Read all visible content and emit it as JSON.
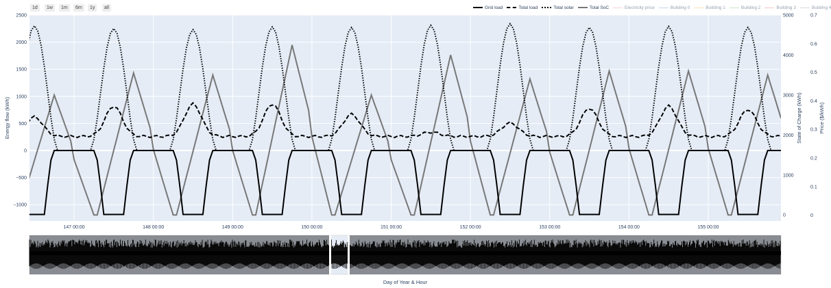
{
  "range_buttons": [
    "1d",
    "1w",
    "1m",
    "6m",
    "1y",
    "all"
  ],
  "legend": [
    {
      "label": "Grid load",
      "color": "#000000",
      "dash": "solid",
      "width": 2
    },
    {
      "label": "Total load",
      "color": "#000000",
      "dash": "dash",
      "width": 2
    },
    {
      "label": "Total solar",
      "color": "#000000",
      "dash": "dot",
      "width": 2
    },
    {
      "label": "Total SoC",
      "color": "#777777",
      "dash": "solid",
      "width": 2
    },
    {
      "label": "Electricity price",
      "color": "#f4a7b2",
      "dash": "solid",
      "width": 1,
      "hidden": true
    },
    {
      "label": "Building 0",
      "color": "#89a9d6",
      "dash": "solid",
      "width": 1,
      "hidden": true
    },
    {
      "label": "Building 1",
      "color": "#fbbf77",
      "dash": "solid",
      "width": 1,
      "hidden": true
    },
    {
      "label": "Building 2",
      "color": "#8ed18e",
      "dash": "solid",
      "width": 1,
      "hidden": true
    },
    {
      "label": "Building 3",
      "color": "#f08a8a",
      "dash": "solid",
      "width": 1,
      "hidden": true
    },
    {
      "label": "Building 4",
      "color": "#b0b0b0",
      "dash": "solid",
      "width": 1,
      "hidden": true
    }
  ],
  "chart_data": {
    "type": "line",
    "xlabel": "Day of Year & Hour",
    "ylabel_left": "Energy flow (kWh)",
    "ylabel_right1": "State of Charge (kWh)",
    "ylabel_right2": "Price ($/kWh)",
    "x_range_hours": [
      3514.5,
      3742
    ],
    "x_ticks": [
      "147 00:00",
      "148 00:00",
      "149 00:00",
      "150 00:00",
      "151 00:00",
      "152 00:00",
      "153 00:00",
      "154 00:00",
      "155 00:00"
    ],
    "x_tick_hours": [
      3528,
      3552,
      3576,
      3600,
      3624,
      3648,
      3672,
      3696,
      3720
    ],
    "y_left_range": [
      -1300,
      2500
    ],
    "y_left_ticks": [
      -1000,
      -500,
      0,
      500,
      1000,
      1500,
      2000,
      2500
    ],
    "y_left_tick_labels": [
      "−1000",
      "−500",
      "0",
      "500",
      "1000",
      "1500",
      "2000",
      "2500"
    ],
    "y_soc_range": [
      -150,
      5000
    ],
    "y_soc_ticks": [
      0,
      1000,
      2000,
      3000,
      4000,
      5000
    ],
    "y_price_range": [
      -0.02,
      0.7
    ],
    "y_price_ticks": [
      0,
      0.1,
      0.2,
      0.3,
      0.4,
      0.5,
      0.6,
      0.7
    ],
    "grid": true,
    "rangeslider": true,
    "daily_solar_peaks": [
      2300,
      2250,
      2230,
      2280,
      2270,
      2310,
      2340,
      2270,
      2290,
      2270
    ],
    "daily_load_peaks": [
      620,
      820,
      860,
      860,
      670,
      340,
      510,
      780,
      820,
      760
    ],
    "load_base": 260,
    "daily_soc_peaks": [
      3000,
      3550,
      3500,
      4250,
      3000,
      4000,
      3400,
      3600,
      3600,
      3500
    ],
    "soc_min": 0,
    "grid_load_min": -1180,
    "series_names": [
      "Grid load",
      "Total load",
      "Total solar",
      "Total SoC"
    ]
  }
}
